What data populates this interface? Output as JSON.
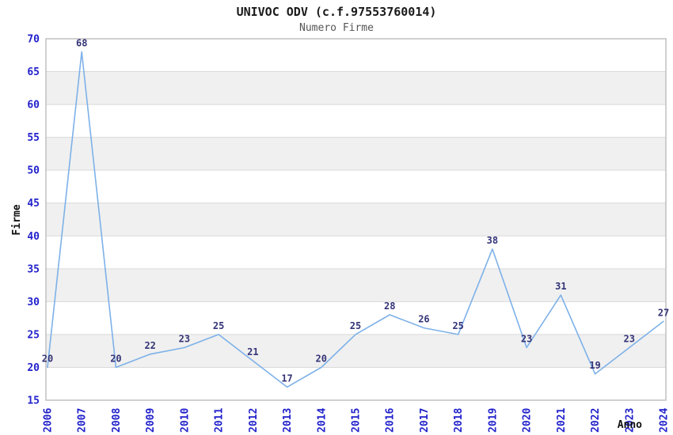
{
  "chart_data": {
    "type": "line",
    "title": "UNIVOC ODV (c.f.97553760014)",
    "subtitle": "Numero Firme",
    "xlabel": "Anno",
    "ylabel": "Firme",
    "categories": [
      "2006",
      "2007",
      "2008",
      "2009",
      "2010",
      "2011",
      "2012",
      "2013",
      "2014",
      "2015",
      "2016",
      "2017",
      "2018",
      "2019",
      "2020",
      "2021",
      "2022",
      "2023",
      "2024"
    ],
    "series": [
      {
        "name": "Numero Firme",
        "values": [
          20,
          68,
          20,
          22,
          23,
          25,
          21,
          17,
          20,
          25,
          28,
          26,
          25,
          38,
          23,
          31,
          19,
          23,
          27
        ]
      }
    ],
    "ylim": [
      15,
      70
    ],
    "ytick_step": 5,
    "grid": true,
    "legend": "none",
    "band_ranges": [
      [
        20,
        25
      ],
      [
        30,
        35
      ],
      [
        40,
        45
      ],
      [
        50,
        55
      ],
      [
        60,
        65
      ]
    ],
    "colors": {
      "line": "#7db1e8",
      "tick_label": "#2222cc",
      "data_label": "#333377",
      "band_fill": "#f0f0f0",
      "grid_line": "#d9d9d9",
      "plot_border": "#c0c0c0",
      "title": "#1a1a1a",
      "subtitle": "#555555",
      "axis_label": "#111111"
    }
  }
}
